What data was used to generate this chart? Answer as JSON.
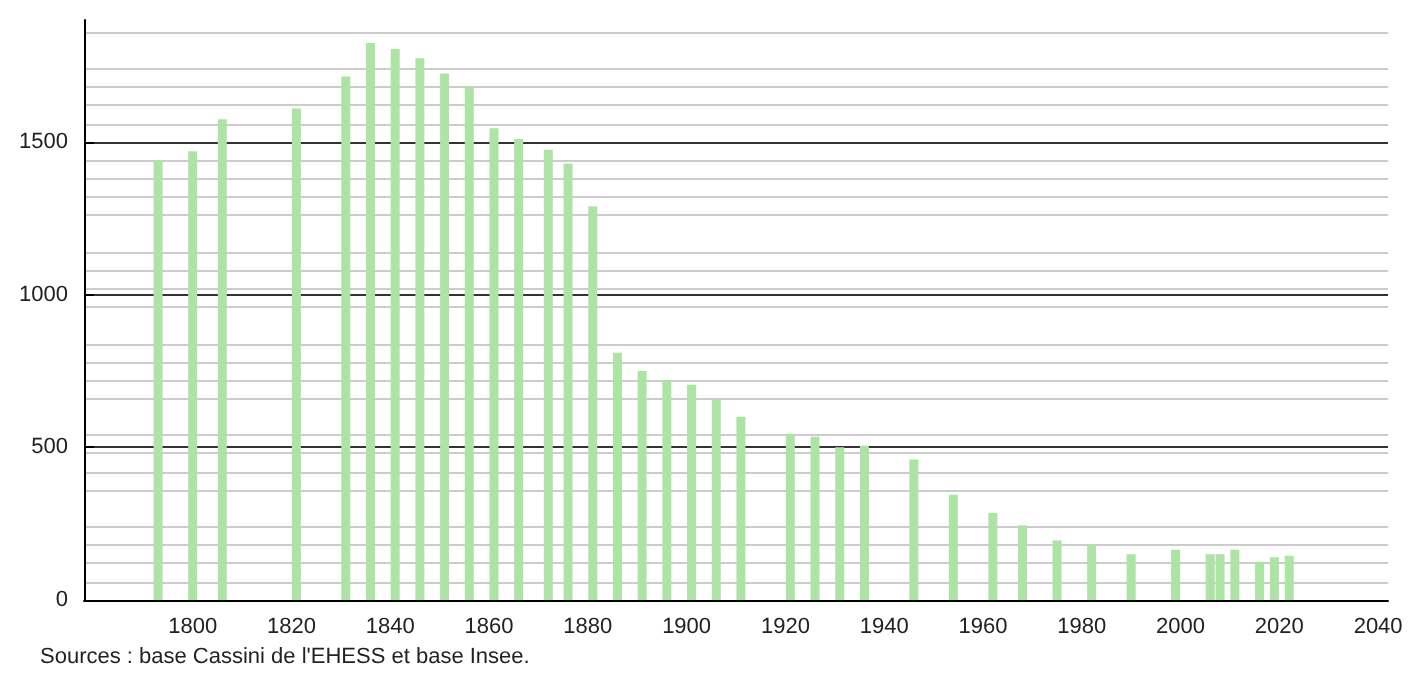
{
  "chart_data": {
    "type": "bar",
    "color": "#aee3a6",
    "x": [
      1793,
      1800,
      1806,
      1821,
      1831,
      1836,
      1841,
      1846,
      1851,
      1856,
      1861,
      1866,
      1872,
      1876,
      1881,
      1886,
      1891,
      1896,
      1901,
      1906,
      1911,
      1921,
      1926,
      1931,
      1936,
      1946,
      1954,
      1962,
      1968,
      1975,
      1982,
      1990,
      1999,
      2006,
      2008,
      2011,
      2016,
      2019,
      2022
    ],
    "values": [
      1440,
      1470,
      1575,
      1610,
      1715,
      1825,
      1805,
      1775,
      1725,
      1680,
      1545,
      1510,
      1475,
      1430,
      1290,
      810,
      750,
      720,
      705,
      655,
      600,
      545,
      535,
      500,
      505,
      460,
      345,
      285,
      245,
      195,
      180,
      150,
      165,
      150,
      150,
      165,
      125,
      140,
      145
    ],
    "xlim": [
      1778,
      2042
    ],
    "xticks": [
      1800,
      1820,
      1840,
      1860,
      1880,
      1900,
      1920,
      1940,
      1960,
      1980,
      2000,
      2020,
      2040
    ],
    "ylim": [
      0,
      1900
    ],
    "yticks": [
      0,
      500,
      1000,
      1500
    ],
    "grid": "y",
    "annotations": [
      "Sources : base Cassini de l'EHESS et base Insee."
    ]
  }
}
